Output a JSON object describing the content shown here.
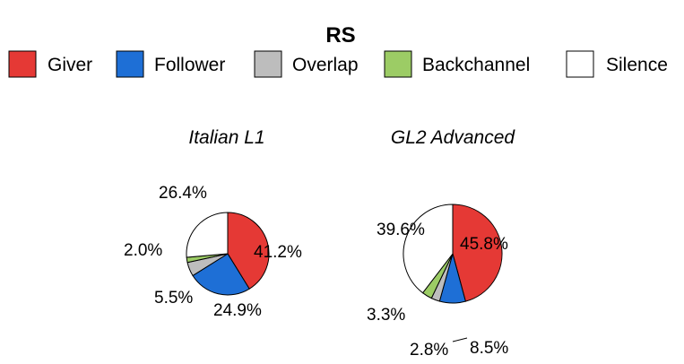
{
  "chart_data": {
    "type": "pie",
    "title": "RS",
    "legend": {
      "placement": "top",
      "entries": [
        {
          "label": "Giver",
          "color": "#e53935"
        },
        {
          "label": "Follower",
          "color": "#1e6fd6"
        },
        {
          "label": "Overlap",
          "color": "#bdbdbd"
        },
        {
          "label": "Backchannel",
          "color": "#9ccc65"
        },
        {
          "label": "Silence",
          "color": "#ffffff"
        }
      ]
    },
    "pies": [
      {
        "name": "Italian L1",
        "slices": [
          {
            "category": "Giver",
            "value": 41.2,
            "label": "41.2%"
          },
          {
            "category": "Follower",
            "value": 24.9,
            "label": "24.9%"
          },
          {
            "category": "Overlap",
            "value": 5.5,
            "label": "5.5%"
          },
          {
            "category": "Backchannel",
            "value": 2.0,
            "label": "2.0%"
          },
          {
            "category": "Silence",
            "value": 26.4,
            "label": "26.4%"
          }
        ]
      },
      {
        "name": "GL2 Advanced",
        "slices": [
          {
            "category": "Giver",
            "value": 45.8,
            "label": "45.8%"
          },
          {
            "category": "Follower",
            "value": 8.5,
            "label": "8.5%"
          },
          {
            "category": "Overlap",
            "value": 2.8,
            "label": "2.8%"
          },
          {
            "category": "Backchannel",
            "value": 3.3,
            "label": "3.3%"
          },
          {
            "category": "Silence",
            "value": 39.6,
            "label": "39.6%"
          }
        ]
      }
    ]
  }
}
